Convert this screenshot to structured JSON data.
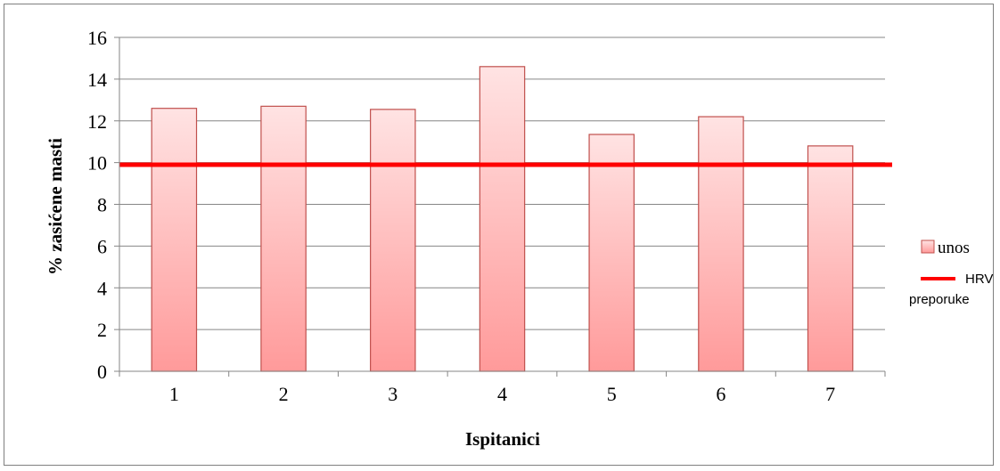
{
  "chart_data": {
    "type": "bar",
    "categories": [
      "1",
      "2",
      "3",
      "4",
      "5",
      "6",
      "7"
    ],
    "series": [
      {
        "name": "unos",
        "values": [
          12.6,
          12.7,
          12.55,
          14.6,
          11.35,
          12.2,
          10.8
        ]
      }
    ],
    "reference_line": {
      "name": "HRV preporuke",
      "value": 9.9,
      "color": "#ff0000"
    },
    "title": "",
    "xlabel": "Ispitanici",
    "ylabel": "% zasićene masti",
    "ylim": [
      0,
      16
    ],
    "yticks": [
      "0",
      "2",
      "4",
      "6",
      "8",
      "10",
      "12",
      "14",
      "16"
    ],
    "grid": true,
    "legend_position": "right",
    "legend": {
      "bar_label": "unos",
      "line_label_1": "HRV",
      "line_label_2": "preporuke"
    },
    "colors": {
      "bar_top": "#ffe3e3",
      "bar_bottom": "#ff9a9a",
      "bar_border": "#c0504d",
      "line": "#ff0000",
      "grid": "#868686"
    }
  }
}
